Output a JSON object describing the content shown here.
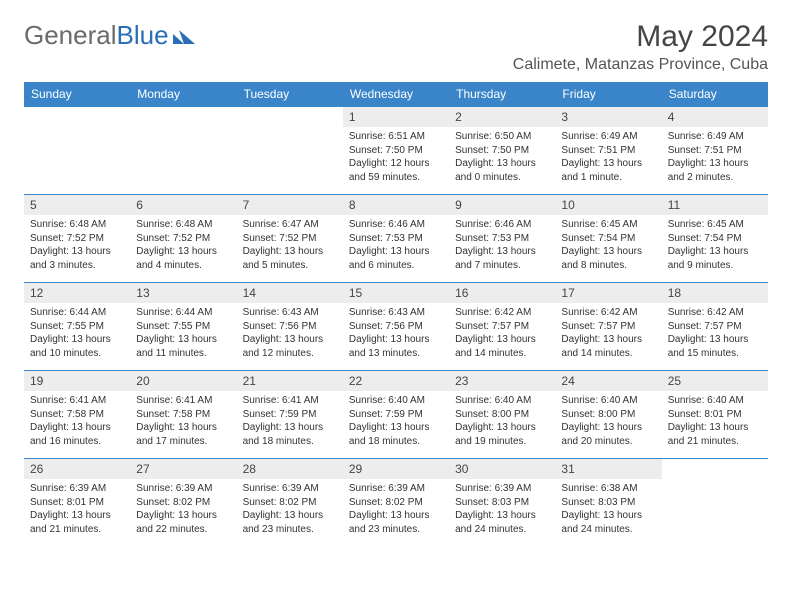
{
  "logo": {
    "general": "General",
    "blue": "Blue"
  },
  "title": "May 2024",
  "location": "Calimete, Matanzas Province, Cuba",
  "weekdays": [
    "Sunday",
    "Monday",
    "Tuesday",
    "Wednesday",
    "Thursday",
    "Friday",
    "Saturday"
  ],
  "colors": {
    "header_bg": "#3a85c9",
    "header_text": "#ffffff",
    "daynum_bg": "#ededed",
    "border": "#3a85c9",
    "logo_gray": "#6b6b6b",
    "logo_blue": "#2a6db8"
  },
  "weeks": [
    [
      null,
      null,
      null,
      {
        "n": "1",
        "sr": "Sunrise: 6:51 AM",
        "ss": "Sunset: 7:50 PM",
        "dl": "Daylight: 12 hours and 59 minutes."
      },
      {
        "n": "2",
        "sr": "Sunrise: 6:50 AM",
        "ss": "Sunset: 7:50 PM",
        "dl": "Daylight: 13 hours and 0 minutes."
      },
      {
        "n": "3",
        "sr": "Sunrise: 6:49 AM",
        "ss": "Sunset: 7:51 PM",
        "dl": "Daylight: 13 hours and 1 minute."
      },
      {
        "n": "4",
        "sr": "Sunrise: 6:49 AM",
        "ss": "Sunset: 7:51 PM",
        "dl": "Daylight: 13 hours and 2 minutes."
      }
    ],
    [
      {
        "n": "5",
        "sr": "Sunrise: 6:48 AM",
        "ss": "Sunset: 7:52 PM",
        "dl": "Daylight: 13 hours and 3 minutes."
      },
      {
        "n": "6",
        "sr": "Sunrise: 6:48 AM",
        "ss": "Sunset: 7:52 PM",
        "dl": "Daylight: 13 hours and 4 minutes."
      },
      {
        "n": "7",
        "sr": "Sunrise: 6:47 AM",
        "ss": "Sunset: 7:52 PM",
        "dl": "Daylight: 13 hours and 5 minutes."
      },
      {
        "n": "8",
        "sr": "Sunrise: 6:46 AM",
        "ss": "Sunset: 7:53 PM",
        "dl": "Daylight: 13 hours and 6 minutes."
      },
      {
        "n": "9",
        "sr": "Sunrise: 6:46 AM",
        "ss": "Sunset: 7:53 PM",
        "dl": "Daylight: 13 hours and 7 minutes."
      },
      {
        "n": "10",
        "sr": "Sunrise: 6:45 AM",
        "ss": "Sunset: 7:54 PM",
        "dl": "Daylight: 13 hours and 8 minutes."
      },
      {
        "n": "11",
        "sr": "Sunrise: 6:45 AM",
        "ss": "Sunset: 7:54 PM",
        "dl": "Daylight: 13 hours and 9 minutes."
      }
    ],
    [
      {
        "n": "12",
        "sr": "Sunrise: 6:44 AM",
        "ss": "Sunset: 7:55 PM",
        "dl": "Daylight: 13 hours and 10 minutes."
      },
      {
        "n": "13",
        "sr": "Sunrise: 6:44 AM",
        "ss": "Sunset: 7:55 PM",
        "dl": "Daylight: 13 hours and 11 minutes."
      },
      {
        "n": "14",
        "sr": "Sunrise: 6:43 AM",
        "ss": "Sunset: 7:56 PM",
        "dl": "Daylight: 13 hours and 12 minutes."
      },
      {
        "n": "15",
        "sr": "Sunrise: 6:43 AM",
        "ss": "Sunset: 7:56 PM",
        "dl": "Daylight: 13 hours and 13 minutes."
      },
      {
        "n": "16",
        "sr": "Sunrise: 6:42 AM",
        "ss": "Sunset: 7:57 PM",
        "dl": "Daylight: 13 hours and 14 minutes."
      },
      {
        "n": "17",
        "sr": "Sunrise: 6:42 AM",
        "ss": "Sunset: 7:57 PM",
        "dl": "Daylight: 13 hours and 14 minutes."
      },
      {
        "n": "18",
        "sr": "Sunrise: 6:42 AM",
        "ss": "Sunset: 7:57 PM",
        "dl": "Daylight: 13 hours and 15 minutes."
      }
    ],
    [
      {
        "n": "19",
        "sr": "Sunrise: 6:41 AM",
        "ss": "Sunset: 7:58 PM",
        "dl": "Daylight: 13 hours and 16 minutes."
      },
      {
        "n": "20",
        "sr": "Sunrise: 6:41 AM",
        "ss": "Sunset: 7:58 PM",
        "dl": "Daylight: 13 hours and 17 minutes."
      },
      {
        "n": "21",
        "sr": "Sunrise: 6:41 AM",
        "ss": "Sunset: 7:59 PM",
        "dl": "Daylight: 13 hours and 18 minutes."
      },
      {
        "n": "22",
        "sr": "Sunrise: 6:40 AM",
        "ss": "Sunset: 7:59 PM",
        "dl": "Daylight: 13 hours and 18 minutes."
      },
      {
        "n": "23",
        "sr": "Sunrise: 6:40 AM",
        "ss": "Sunset: 8:00 PM",
        "dl": "Daylight: 13 hours and 19 minutes."
      },
      {
        "n": "24",
        "sr": "Sunrise: 6:40 AM",
        "ss": "Sunset: 8:00 PM",
        "dl": "Daylight: 13 hours and 20 minutes."
      },
      {
        "n": "25",
        "sr": "Sunrise: 6:40 AM",
        "ss": "Sunset: 8:01 PM",
        "dl": "Daylight: 13 hours and 21 minutes."
      }
    ],
    [
      {
        "n": "26",
        "sr": "Sunrise: 6:39 AM",
        "ss": "Sunset: 8:01 PM",
        "dl": "Daylight: 13 hours and 21 minutes."
      },
      {
        "n": "27",
        "sr": "Sunrise: 6:39 AM",
        "ss": "Sunset: 8:02 PM",
        "dl": "Daylight: 13 hours and 22 minutes."
      },
      {
        "n": "28",
        "sr": "Sunrise: 6:39 AM",
        "ss": "Sunset: 8:02 PM",
        "dl": "Daylight: 13 hours and 23 minutes."
      },
      {
        "n": "29",
        "sr": "Sunrise: 6:39 AM",
        "ss": "Sunset: 8:02 PM",
        "dl": "Daylight: 13 hours and 23 minutes."
      },
      {
        "n": "30",
        "sr": "Sunrise: 6:39 AM",
        "ss": "Sunset: 8:03 PM",
        "dl": "Daylight: 13 hours and 24 minutes."
      },
      {
        "n": "31",
        "sr": "Sunrise: 6:38 AM",
        "ss": "Sunset: 8:03 PM",
        "dl": "Daylight: 13 hours and 24 minutes."
      },
      null
    ]
  ]
}
